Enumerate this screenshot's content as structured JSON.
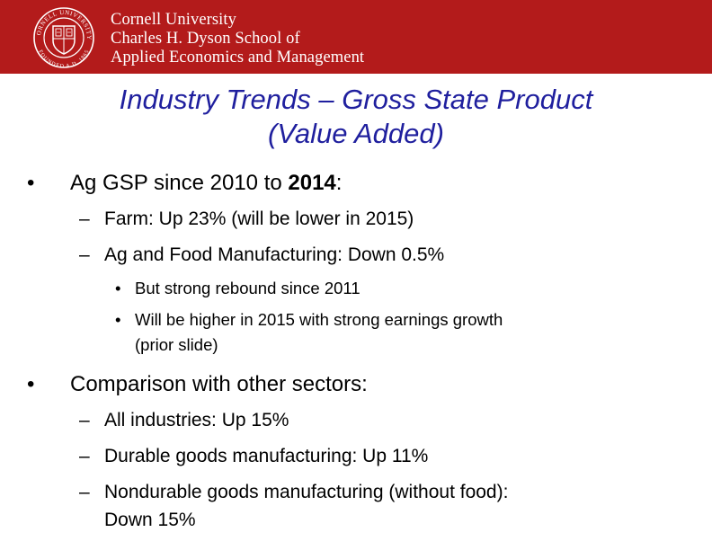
{
  "header": {
    "logo_icon": "cornell-seal-icon",
    "seal_top_text": "CORNELL UNIVERSITY",
    "seal_bottom_text": "FOUNDED A.D. 1865",
    "university": "Cornell University",
    "school": "Charles H. Dyson School of",
    "school_line2": "Applied Economics and Management",
    "brand_color": "#b31b1b"
  },
  "title": {
    "line1": "Industry Trends – Gross State Product",
    "line2": "(Value Added)",
    "color": "#1f1f9e"
  },
  "bullets": {
    "b1": {
      "text": "Ag GSP since 2010 to ",
      "bold": "2014",
      "tail": ":",
      "sub": [
        "Farm: Up 23% (will be lower in 2015)",
        "Ag and Food Manufacturing: Down 0.5%"
      ],
      "subsub": [
        "But strong rebound since 2011",
        "Will be higher in 2015 with strong earnings growth"
      ],
      "subsub_cont": "(prior slide)"
    },
    "b2": {
      "text": "Comparison with other sectors:",
      "sub": [
        "All industries: Up 15%",
        "Durable goods manufacturing: Up 11%",
        "Nondurable goods manufacturing (without food):"
      ],
      "sub_cont": "Down 15%"
    },
    "bullet_glyph": "•",
    "dash_glyph": "–"
  }
}
